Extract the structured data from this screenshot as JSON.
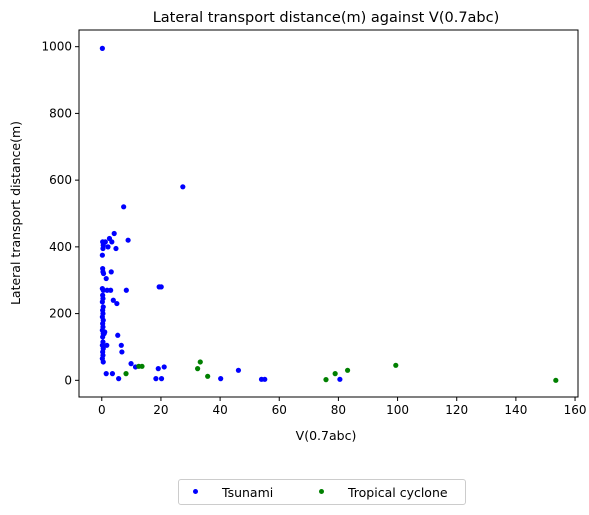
{
  "chart_data": {
    "type": "scatter",
    "title": "Lateral transport distance(m) against V(0.7abc)",
    "xlabel": "V(0.7abc)",
    "ylabel": "Lateral transport distance(m)",
    "xlim": [
      -7.7,
      161
    ],
    "ylim": [
      -50,
      1050
    ],
    "xticks": [
      0,
      20,
      40,
      60,
      80,
      100,
      120,
      140,
      160
    ],
    "yticks": [
      0,
      200,
      400,
      600,
      800,
      1000
    ],
    "xtick_labels": [
      "0",
      "20",
      "40",
      "60",
      "80",
      "100",
      "120",
      "140",
      "160"
    ],
    "ytick_labels": [
      "0",
      "200",
      "400",
      "600",
      "800",
      "1000"
    ],
    "legend_position": "below plot, centered",
    "grid": false,
    "series": [
      {
        "name": "Tsunami",
        "color": "#0000ff",
        "points": [
          [
            0.2,
            995
          ],
          [
            0.3,
            415
          ],
          [
            0.5,
            405
          ],
          [
            0.4,
            395
          ],
          [
            0.2,
            375
          ],
          [
            0.3,
            335
          ],
          [
            0.4,
            325
          ],
          [
            0.6,
            320
          ],
          [
            0.2,
            275
          ],
          [
            0.5,
            270
          ],
          [
            0.3,
            255
          ],
          [
            0.4,
            245
          ],
          [
            0.2,
            235
          ],
          [
            0.5,
            220
          ],
          [
            0.3,
            210
          ],
          [
            0.4,
            200
          ],
          [
            0.2,
            190
          ],
          [
            0.5,
            180
          ],
          [
            0.3,
            170
          ],
          [
            0.4,
            160
          ],
          [
            0.2,
            150
          ],
          [
            0.5,
            140
          ],
          [
            0.3,
            130
          ],
          [
            0.4,
            115
          ],
          [
            0.2,
            105
          ],
          [
            0.5,
            95
          ],
          [
            0.3,
            85
          ],
          [
            0.4,
            75
          ],
          [
            0.2,
            65
          ],
          [
            0.5,
            55
          ],
          [
            0.8,
            140
          ],
          [
            1,
            145
          ],
          [
            1.2,
            415
          ],
          [
            1.5,
            305
          ],
          [
            1.8,
            270
          ],
          [
            1.7,
            105
          ],
          [
            1.5,
            20
          ],
          [
            2.1,
            400
          ],
          [
            2.6,
            425
          ],
          [
            3,
            270
          ],
          [
            3.2,
            325
          ],
          [
            3.4,
            415
          ],
          [
            3.6,
            20
          ],
          [
            3.9,
            240
          ],
          [
            4.2,
            440
          ],
          [
            4.8,
            395
          ],
          [
            5.1,
            230
          ],
          [
            5.4,
            135
          ],
          [
            5.7,
            5
          ],
          [
            6.6,
            105
          ],
          [
            6.8,
            85
          ],
          [
            7.4,
            520
          ],
          [
            8.3,
            270
          ],
          [
            8.9,
            420
          ],
          [
            9.9,
            50
          ],
          [
            11.4,
            40
          ],
          [
            18.3,
            5
          ],
          [
            19.1,
            35
          ],
          [
            19.4,
            280
          ],
          [
            20.1,
            280
          ],
          [
            20.2,
            5
          ],
          [
            21.1,
            40
          ],
          [
            27.4,
            580
          ],
          [
            40.2,
            5
          ],
          [
            46.2,
            30
          ],
          [
            54,
            3
          ],
          [
            55.1,
            3
          ],
          [
            80.5,
            3
          ]
        ]
      },
      {
        "name": "Tropical cyclone",
        "color": "#008000",
        "points": [
          [
            8.2,
            20
          ],
          [
            12.5,
            42
          ],
          [
            13.6,
            42
          ],
          [
            32.4,
            35
          ],
          [
            33.3,
            55
          ],
          [
            35.8,
            12
          ],
          [
            75.8,
            2
          ],
          [
            78.9,
            20
          ],
          [
            83.1,
            30
          ],
          [
            99.4,
            45
          ],
          [
            153.5,
            0
          ]
        ]
      }
    ]
  }
}
